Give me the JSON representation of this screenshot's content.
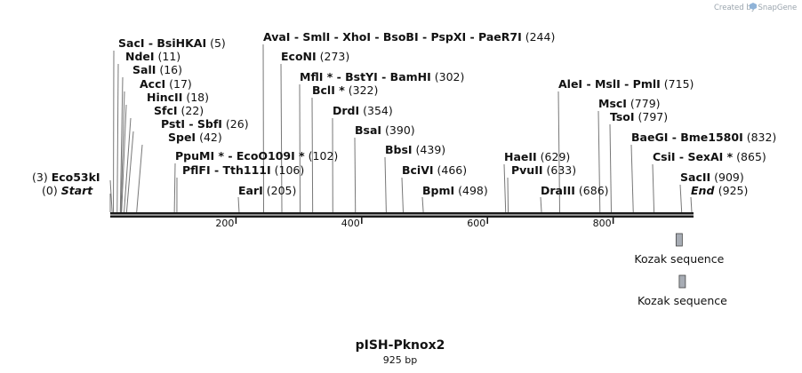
{
  "credit": "Created by SnapGene",
  "plasmid": {
    "name": "pISH-Pknox2",
    "length_label": "925 bp",
    "length": 925
  },
  "sites": [
    {
      "name": "Eco53kI",
      "pos": "(3)",
      "at": 3
    },
    {
      "name": "Start",
      "pos": "(0)",
      "at": 0,
      "italic": true
    },
    {
      "name": "SacI  -  BsiHKAI",
      "pos": "(5)",
      "at": 5
    },
    {
      "name": "NdeI",
      "pos": "(11)",
      "at": 11
    },
    {
      "name": "SalI",
      "pos": "(16)",
      "at": 16
    },
    {
      "name": "AccI",
      "pos": "(17)",
      "at": 17
    },
    {
      "name": "HincII",
      "pos": "(18)",
      "at": 18
    },
    {
      "name": "SfcI",
      "pos": "(22)",
      "at": 22
    },
    {
      "name": "PstI  -  SbfI",
      "pos": "(26)",
      "at": 26
    },
    {
      "name": "SpeI",
      "pos": "(42)",
      "at": 42
    },
    {
      "name": "PpuMI *  -  EcoO109I *",
      "pos": "(102)",
      "at": 102
    },
    {
      "name": "PflFI  -  Tth111I",
      "pos": "(106)",
      "at": 106
    },
    {
      "name": "EarI",
      "pos": "(205)",
      "at": 205
    },
    {
      "name": "AvaI  -  SmlI  -  XhoI  -  BsoBI  -  PspXI  -  PaeR7I",
      "pos": "(244)",
      "at": 244
    },
    {
      "name": "EcoNI",
      "pos": "(273)",
      "at": 273
    },
    {
      "name": "MflI *  -  BstYI  -  BamHI",
      "pos": "(302)",
      "at": 302
    },
    {
      "name": "BclI *",
      "pos": "(322)",
      "at": 322
    },
    {
      "name": "DrdI",
      "pos": "(354)",
      "at": 354
    },
    {
      "name": "BsaI",
      "pos": "(390)",
      "at": 390
    },
    {
      "name": "BbsI",
      "pos": "(439)",
      "at": 439
    },
    {
      "name": "BciVI",
      "pos": "(466)",
      "at": 466
    },
    {
      "name": "BpmI",
      "pos": "(498)",
      "at": 498
    },
    {
      "name": "HaeII",
      "pos": "(629)",
      "at": 629
    },
    {
      "name": "PvuII",
      "pos": "(633)",
      "at": 633
    },
    {
      "name": "DraIII",
      "pos": "(686)",
      "at": 686
    },
    {
      "name": "AleI  -  MslI  -  PmlI",
      "pos": "(715)",
      "at": 715
    },
    {
      "name": "MscI",
      "pos": "(779)",
      "at": 779
    },
    {
      "name": "TsoI",
      "pos": "(797)",
      "at": 797
    },
    {
      "name": "BaeGI  -  Bme1580I",
      "pos": "(832)",
      "at": 832
    },
    {
      "name": "CsiI  -  SexAI *",
      "pos": "(865)",
      "at": 865
    },
    {
      "name": "SacII",
      "pos": "(909)",
      "at": 909
    },
    {
      "name": "End",
      "pos": "(925)",
      "at": 925,
      "italic": true
    }
  ],
  "ticks": [
    200,
    400,
    600,
    800
  ],
  "tick_labels": [
    "200",
    "400",
    "600",
    "800"
  ],
  "features": [
    {
      "label": "Kozak sequence",
      "start": 900,
      "end": 910
    },
    {
      "label": "Kozak sequence",
      "start": 905,
      "end": 915
    }
  ]
}
